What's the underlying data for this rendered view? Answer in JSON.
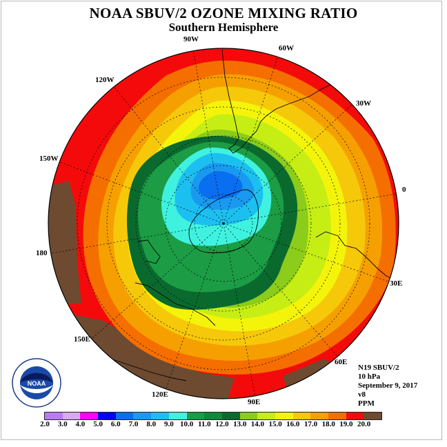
{
  "title": "NOAA SBUV/2 OZONE MIXING RATIO",
  "subtitle": "Southern Hemisphere",
  "longitude_labels": [
    "90W",
    "60W",
    "30W",
    "0",
    "30E",
    "60E",
    "90E",
    "120E",
    "150E",
    "180",
    "150W",
    "120W"
  ],
  "info": {
    "instrument": "N19 SBUV/2",
    "level": "10 hPa",
    "date": "September 9, 2017",
    "version": "v8",
    "units": "PPM"
  },
  "colorbar": {
    "ticks": [
      "2.0",
      "3.0",
      "4.0",
      "5.0",
      "6.0",
      "7.0",
      "8.0",
      "9.0",
      "10.0",
      "11.0",
      "12.0",
      "13.0",
      "14.0",
      "15.0",
      "16.0",
      "17.0",
      "18.0",
      "19.0",
      "20.0"
    ],
    "colors": [
      "#b77cf2",
      "#d9a8ef",
      "#ff00ff",
      "#0000f5",
      "#0a6ef0",
      "#1a99f0",
      "#1cc0f0",
      "#3ff2e0",
      "#1c9c44",
      "#0e8a3a",
      "#0a6a2e",
      "#8ccc1a",
      "#c6ee14",
      "#f4f40a",
      "#f6c80a",
      "#f5a000",
      "#f56e00",
      "#f40a0a",
      "#6e4a30"
    ]
  },
  "logo": {
    "text": "NOAA",
    "ring_text": "NATIONAL OCEANIC AND ATMOSPHERIC ADMINISTRATION · U.S. DEPARTMENT OF COMMERCE"
  }
}
